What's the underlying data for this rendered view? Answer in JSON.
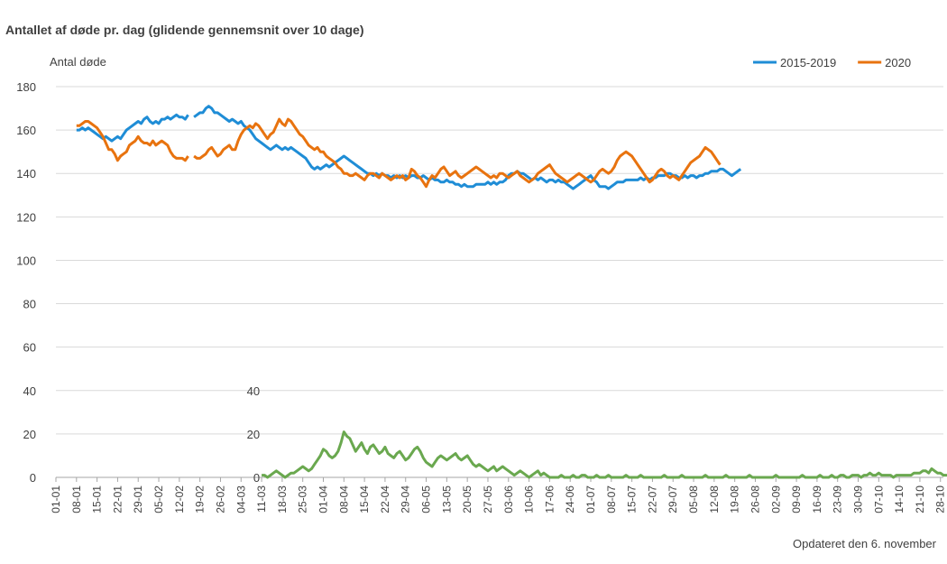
{
  "chart_data": {
    "type": "line",
    "title": "Antallet af døde pr. dag (glidende gennemsnit over 10 dage)",
    "ylabel": "Antal døde",
    "ylim": [
      0,
      180
    ],
    "yticks": [
      0,
      20,
      40,
      60,
      80,
      100,
      120,
      140,
      160,
      180
    ],
    "x_tick_labels": [
      "01-01",
      "08-01",
      "15-01",
      "22-01",
      "29-01",
      "05-02",
      "12-02",
      "19-02",
      "26-02",
      "04-03",
      "11-03",
      "18-03",
      "25-03",
      "01-04",
      "08-04",
      "15-04",
      "22-04",
      "29-04",
      "06-05",
      "13-05",
      "20-05",
      "27-05",
      "03-06",
      "10-06",
      "17-06",
      "24-06",
      "01-07",
      "08-07",
      "15-07",
      "22-07",
      "29-07",
      "05-08",
      "12-08",
      "19-08",
      "26-08",
      "02-09",
      "09-09",
      "16-09",
      "23-09",
      "30-09",
      "07-10",
      "14-10",
      "21-10",
      "28-10"
    ],
    "grid": "horizontal",
    "legend": "top-right",
    "footnote": "Opdateret den 6. november",
    "secondary_axis": {
      "ylim": [
        0,
        40
      ],
      "yticks": [
        0,
        20,
        40
      ],
      "start_day": 70
    },
    "series": [
      {
        "name": "2015-2019",
        "color": "#1f8dd6",
        "start_day": 7,
        "values": [
          160,
          160,
          161,
          160,
          161,
          160,
          159,
          158,
          157,
          156,
          157,
          156,
          155,
          156,
          157,
          156,
          158,
          160,
          161,
          162,
          163,
          164,
          163,
          165,
          166,
          164,
          163,
          164,
          163,
          165,
          165,
          166,
          165,
          166,
          167,
          166,
          166,
          165,
          167,
          null,
          166,
          167,
          168,
          168,
          170,
          171,
          170,
          168,
          168,
          167,
          166,
          165,
          164,
          165,
          164,
          163,
          164,
          162,
          161,
          160,
          158,
          156,
          155,
          154,
          153,
          152,
          151,
          152,
          153,
          152,
          151,
          152,
          151,
          152,
          151,
          150,
          149,
          148,
          147,
          145,
          143,
          142,
          143,
          142,
          143,
          144,
          143,
          144,
          145,
          146,
          147,
          148,
          147,
          146,
          145,
          144,
          143,
          142,
          141,
          140,
          140,
          139,
          140,
          139,
          140,
          139,
          139,
          138,
          139,
          138,
          139,
          138,
          139,
          138,
          139,
          139,
          138,
          138,
          139,
          138,
          137,
          138,
          137,
          137,
          136,
          136,
          137,
          136,
          136,
          135,
          135,
          134,
          135,
          134,
          134,
          134,
          135,
          135,
          135,
          135,
          136,
          135,
          136,
          135,
          136,
          136,
          137,
          139,
          140,
          140,
          141,
          140,
          140,
          139,
          138,
          137,
          138,
          137,
          138,
          137,
          136,
          137,
          137,
          136,
          137,
          136,
          136,
          135,
          134,
          133,
          134,
          135,
          136,
          137,
          138,
          139,
          137,
          136,
          134,
          134,
          134,
          133,
          134,
          135,
          136,
          136,
          136,
          137,
          137,
          137,
          137,
          137,
          138,
          137,
          138,
          137,
          138,
          138,
          139,
          139,
          139,
          140,
          140,
          139,
          139,
          138,
          138,
          139,
          138,
          139,
          139,
          138,
          139,
          139,
          140,
          140,
          141,
          141,
          141,
          142,
          142,
          141,
          140,
          139,
          140,
          141,
          142
        ]
      },
      {
        "name": "2020",
        "color": "#e8730f",
        "start_day": 7,
        "values": [
          162,
          162,
          163,
          164,
          164,
          163,
          162,
          161,
          159,
          157,
          154,
          151,
          151,
          149,
          146,
          148,
          149,
          150,
          153,
          154,
          155,
          157,
          155,
          154,
          154,
          153,
          155,
          153,
          154,
          155,
          154,
          153,
          150,
          148,
          147,
          147,
          147,
          146,
          148,
          null,
          148,
          147,
          147,
          148,
          149,
          151,
          152,
          150,
          148,
          149,
          151,
          152,
          153,
          151,
          151,
          155,
          158,
          160,
          161,
          162,
          161,
          163,
          162,
          160,
          158,
          156,
          158,
          159,
          162,
          165,
          163,
          162,
          165,
          164,
          162,
          160,
          158,
          157,
          155,
          153,
          152,
          151,
          152,
          150,
          150,
          148,
          147,
          146,
          145,
          143,
          142,
          140,
          140,
          139,
          139,
          140,
          139,
          138,
          137,
          139,
          140,
          140,
          139,
          138,
          140,
          139,
          138,
          137,
          138,
          139,
          138,
          139,
          137,
          138,
          142,
          141,
          139,
          138,
          136,
          134,
          137,
          139,
          138,
          140,
          142,
          143,
          141,
          139,
          140,
          141,
          139,
          138,
          139,
          140,
          141,
          142,
          143,
          142,
          141,
          140,
          139,
          138,
          139,
          138,
          140,
          140,
          139,
          138,
          139,
          140,
          141,
          139,
          138,
          137,
          136,
          137,
          138,
          140,
          141,
          142,
          143,
          144,
          142,
          140,
          139,
          138,
          137,
          136,
          137,
          138,
          139,
          140,
          139,
          138,
          137,
          136,
          137,
          139,
          141,
          142,
          141,
          140,
          141,
          143,
          146,
          148,
          149,
          150,
          149,
          148,
          146,
          144,
          142,
          140,
          138,
          136,
          137,
          139,
          141,
          142,
          141,
          139,
          138,
          139,
          138,
          137,
          139,
          141,
          143,
          145,
          146,
          147,
          148,
          150,
          152,
          151,
          150,
          148,
          146,
          144
        ]
      },
      {
        "name": "",
        "color": "#6aa84f",
        "axis": "secondary",
        "start_day": 70,
        "values": [
          1,
          1,
          0,
          1,
          2,
          3,
          2,
          1,
          0,
          1,
          2,
          2,
          3,
          4,
          5,
          4,
          3,
          4,
          6,
          8,
          10,
          13,
          12,
          10,
          9,
          10,
          12,
          16,
          21,
          19,
          18,
          15,
          12,
          14,
          16,
          13,
          11,
          14,
          15,
          13,
          11,
          12,
          14,
          11,
          10,
          9,
          11,
          12,
          10,
          8,
          9,
          11,
          13,
          14,
          12,
          9,
          7,
          6,
          5,
          7,
          9,
          10,
          9,
          8,
          9,
          10,
          11,
          9,
          8,
          9,
          10,
          8,
          6,
          5,
          6,
          5,
          4,
          3,
          4,
          5,
          3,
          4,
          5,
          4,
          3,
          2,
          1,
          2,
          3,
          2,
          1,
          0,
          1,
          2,
          3,
          1,
          2,
          1,
          0,
          0,
          0,
          0,
          1,
          0,
          0,
          0,
          1,
          0,
          0,
          1,
          1,
          0,
          0,
          0,
          1,
          0,
          0,
          0,
          1,
          0,
          0,
          0,
          0,
          0,
          1,
          0,
          0,
          0,
          0,
          1,
          0,
          0,
          0,
          0,
          0,
          0,
          0,
          1,
          0,
          0,
          0,
          0,
          0,
          1,
          0,
          0,
          0,
          0,
          0,
          0,
          0,
          1,
          0,
          0,
          0,
          0,
          0,
          0,
          1,
          0,
          0,
          0,
          0,
          0,
          0,
          0,
          1,
          0,
          0,
          0,
          0,
          0,
          0,
          0,
          0,
          1,
          0,
          0,
          0,
          0,
          0,
          0,
          0,
          0,
          1,
          0,
          0,
          0,
          0,
          0,
          1,
          0,
          0,
          0,
          1,
          0,
          0,
          1,
          1,
          0,
          0,
          1,
          1,
          1,
          0,
          1,
          1,
          2,
          1,
          1,
          2,
          1,
          1,
          1,
          1,
          0,
          1,
          1,
          1,
          1,
          1,
          1,
          2,
          2,
          2,
          3,
          3,
          2,
          4,
          3,
          2,
          2,
          1,
          1,
          1,
          2,
          3
        ]
      }
    ]
  }
}
